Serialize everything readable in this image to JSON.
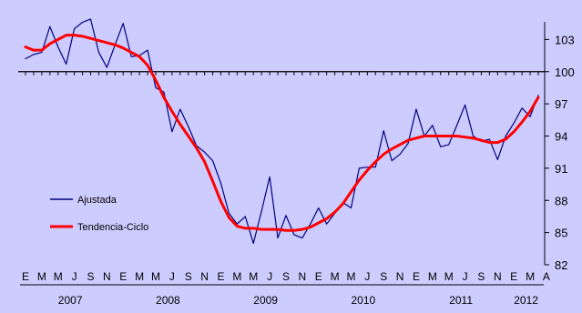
{
  "chart_data": {
    "type": "line",
    "title": "",
    "xlabel": "",
    "ylabel": "",
    "ylim": [
      82,
      106
    ],
    "yticks": [
      82,
      85,
      88,
      91,
      94,
      97,
      100,
      103
    ],
    "reference_line": 100,
    "grid": false,
    "legend_position": "left-middle",
    "background_color": "#ccccff",
    "month_letters": [
      "E",
      "M",
      "M",
      "J",
      "S",
      "N",
      "E",
      "M",
      "M",
      "J",
      "S",
      "N",
      "E",
      "M",
      "M",
      "J",
      "S",
      "N",
      "E",
      "M",
      "M",
      "J",
      "S",
      "N",
      "E",
      "M",
      "M",
      "J",
      "S",
      "N",
      "E",
      "M",
      "A"
    ],
    "years": [
      {
        "label": "2007",
        "start": 0,
        "end": 11
      },
      {
        "label": "2008",
        "start": 12,
        "end": 23
      },
      {
        "label": "2009",
        "start": 24,
        "end": 35
      },
      {
        "label": "2010",
        "start": 36,
        "end": 47
      },
      {
        "label": "2011",
        "start": 48,
        "end": 59
      },
      {
        "label": "2012",
        "start": 60,
        "end": 63
      }
    ],
    "series": [
      {
        "name": "Ajustada",
        "color": "#000080",
        "values": [
          101.2,
          101.6,
          101.8,
          104.2,
          102.3,
          100.7,
          104.0,
          104.6,
          104.9,
          101.8,
          100.4,
          102.5,
          104.5,
          101.4,
          101.5,
          102.0,
          98.5,
          98.1,
          94.4,
          96.5,
          94.9,
          93.1,
          92.5,
          91.7,
          89.6,
          86.8,
          85.8,
          86.5,
          84.0,
          87.0,
          90.2,
          84.5,
          86.6,
          84.8,
          84.5,
          85.8,
          87.3,
          85.8,
          86.8,
          87.8,
          87.3,
          91.0,
          91.1,
          91.1,
          94.5,
          91.7,
          92.3,
          93.3,
          96.5,
          94.0,
          95.0,
          93.0,
          93.2,
          95.0,
          96.9,
          94.0,
          93.5,
          93.7,
          91.8,
          94.0,
          95.2,
          96.6,
          95.8,
          97.8
        ]
      },
      {
        "name": "Tendencia-Ciclo",
        "color": "#ff0000",
        "values": [
          102.3,
          102.0,
          102.0,
          102.6,
          103.0,
          103.4,
          103.4,
          103.3,
          103.1,
          102.9,
          102.7,
          102.5,
          102.2,
          101.8,
          101.4,
          100.6,
          99.2,
          97.6,
          96.3,
          95.1,
          94.0,
          92.9,
          91.6,
          89.8,
          87.9,
          86.4,
          85.6,
          85.4,
          85.4,
          85.3,
          85.3,
          85.3,
          85.2,
          85.2,
          85.3,
          85.5,
          85.9,
          86.3,
          86.9,
          87.7,
          88.8,
          89.9,
          90.8,
          91.6,
          92.3,
          92.8,
          93.2,
          93.6,
          93.8,
          94.0,
          94.0,
          94.0,
          94.0,
          94.0,
          93.9,
          93.8,
          93.6,
          93.4,
          93.4,
          93.7,
          94.4,
          95.3,
          96.3,
          97.6
        ]
      }
    ]
  }
}
